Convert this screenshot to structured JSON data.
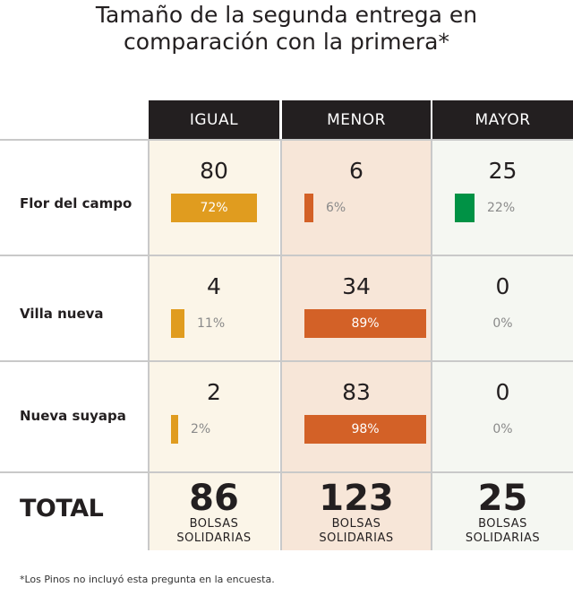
{
  "title": {
    "line1": "Tamaño de la segunda entrega en",
    "line2": "comparación con la primera*"
  },
  "columns": [
    {
      "label": "IGUAL",
      "color": "#e09c1f",
      "bg": "#fbf5e8"
    },
    {
      "label": "MENOR",
      "color": "#d36127",
      "bg": "#f7e6d8"
    },
    {
      "label": "MAYOR",
      "color": "#009245",
      "bg": "#f5f7f2"
    }
  ],
  "rows": [
    {
      "label": "Flor del campo",
      "cells": [
        {
          "count": "80",
          "pct": "72%",
          "value": 72
        },
        {
          "count": "6",
          "pct": "6%",
          "value": 6
        },
        {
          "count": "25",
          "pct": "22%",
          "value": 22
        }
      ]
    },
    {
      "label": "Villa nueva",
      "cells": [
        {
          "count": "4",
          "pct": "11%",
          "value": 11
        },
        {
          "count": "34",
          "pct": "89%",
          "value": 89
        },
        {
          "count": "0",
          "pct": "0%",
          "value": 0
        }
      ]
    },
    {
      "label": "Nueva suyapa",
      "cells": [
        {
          "count": "2",
          "pct": "2%",
          "value": 2
        },
        {
          "count": "83",
          "pct": "98%",
          "value": 98
        },
        {
          "count": "0",
          "pct": "0%",
          "value": 0
        }
      ]
    }
  ],
  "total": {
    "label": "TOTAL",
    "values": [
      {
        "number": "86",
        "unit_line1": "BOLSAS",
        "unit_line2": "SOLIDARIAS"
      },
      {
        "number": "123",
        "unit_line1": "BOLSAS",
        "unit_line2": "SOLIDARIAS"
      },
      {
        "number": "25",
        "unit_line1": "BOLSAS",
        "unit_line2": "SOLIDARIAS"
      }
    ]
  },
  "footnote": "*Los Pinos no incluyó esta pregunta en la encuesta.",
  "chart_data": {
    "type": "table",
    "categories": [
      "IGUAL",
      "MENOR",
      "MAYOR"
    ],
    "series": [
      {
        "name": "Flor del campo",
        "values": [
          80,
          6,
          25
        ],
        "percentages": [
          72,
          6,
          22
        ]
      },
      {
        "name": "Villa nueva",
        "values": [
          4,
          34,
          0
        ],
        "percentages": [
          11,
          89,
          0
        ]
      },
      {
        "name": "Nueva suyapa",
        "values": [
          2,
          83,
          0
        ],
        "percentages": [
          2,
          98,
          0
        ]
      }
    ],
    "totals": [
      86,
      123,
      25
    ],
    "title": "Tamaño de la segunda entrega en comparación con la primera*"
  }
}
